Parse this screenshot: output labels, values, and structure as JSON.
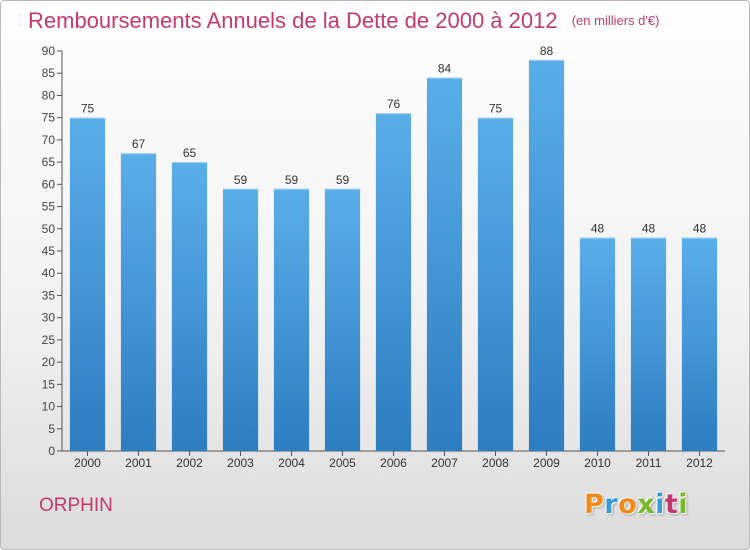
{
  "title": "Remboursements Annuels de la Dette de 2000 à 2012",
  "subtitle": "(en milliers d'€)",
  "commune": "ORPHIN",
  "logo": {
    "text": "Proxiti",
    "colors": [
      "#f08a1c",
      "#3a9ad9",
      "#f08a1c",
      "#76b82a",
      "#3a9ad9",
      "#c23a6d",
      "#76b82a"
    ]
  },
  "colors": {
    "bar_top": "#5aaee8",
    "bar_bottom": "#2d7dc1",
    "title": "#c23a6d",
    "axis": "#555555"
  },
  "chart_data": {
    "type": "bar",
    "categories": [
      "2000",
      "2001",
      "2002",
      "2003",
      "2004",
      "2005",
      "2006",
      "2007",
      "2008",
      "2009",
      "2010",
      "2011",
      "2012"
    ],
    "values": [
      75,
      67,
      65,
      59,
      59,
      59,
      76,
      84,
      75,
      88,
      48,
      48,
      48
    ],
    "ylim": [
      0,
      90
    ],
    "ytick_step": 5,
    "grid": false,
    "data_labels": true
  }
}
